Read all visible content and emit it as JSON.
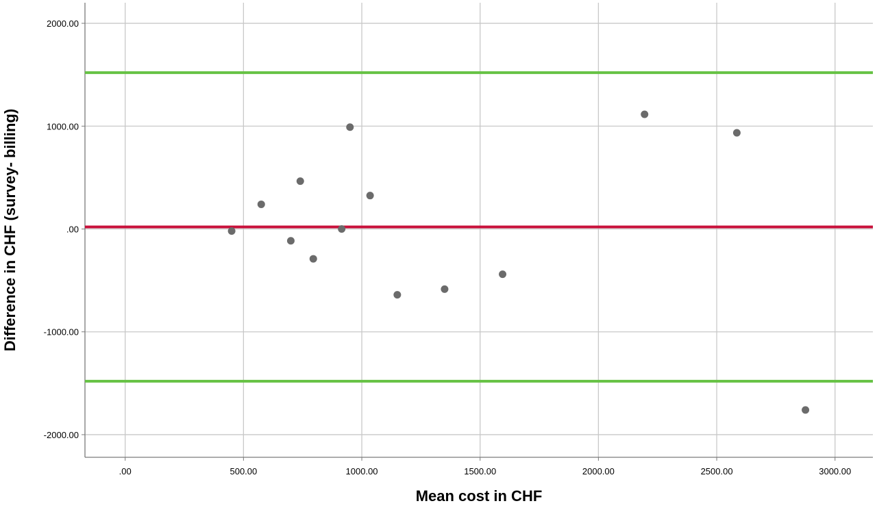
{
  "chart_data": {
    "type": "scatter",
    "title": "",
    "xlabel": "Mean cost in CHF",
    "ylabel": "Difference in CHF (survey- billing)",
    "xlim": [
      -170,
      3160
    ],
    "ylim": [
      -2220,
      2200
    ],
    "x_ticks": [
      0,
      500,
      1000,
      1500,
      2000,
      2500,
      3000
    ],
    "x_tick_labels": [
      ".00",
      "500.00",
      "1000.00",
      "1500.00",
      "2000.00",
      "2500.00",
      "3000.00"
    ],
    "y_ticks": [
      2000,
      1000,
      0,
      -1000,
      -2000
    ],
    "y_tick_labels": [
      "2000.00",
      "1000.00",
      ".00",
      "-1000.00",
      "-2000.00"
    ],
    "grid": true,
    "points": [
      {
        "x": 450,
        "y": -20
      },
      {
        "x": 575,
        "y": 240
      },
      {
        "x": 700,
        "y": -115
      },
      {
        "x": 740,
        "y": 465
      },
      {
        "x": 795,
        "y": -290
      },
      {
        "x": 915,
        "y": 0
      },
      {
        "x": 950,
        "y": 990
      },
      {
        "x": 1035,
        "y": 325
      },
      {
        "x": 1150,
        "y": -640
      },
      {
        "x": 1350,
        "y": -585
      },
      {
        "x": 1595,
        "y": -440
      },
      {
        "x": 2195,
        "y": 1115
      },
      {
        "x": 2585,
        "y": 935
      },
      {
        "x": 2875,
        "y": -1760
      }
    ],
    "reference_lines": [
      {
        "y": 1520,
        "color": "#66c244"
      },
      {
        "y": 20,
        "color": "#c8103a"
      },
      {
        "y": -1480,
        "color": "#66c244"
      }
    ],
    "colors": {
      "point": "#6b6b6b",
      "grid": "#c8c8c8",
      "axis": "#7a7a7a",
      "limit": "#66c244",
      "mean": "#c8103a"
    }
  }
}
